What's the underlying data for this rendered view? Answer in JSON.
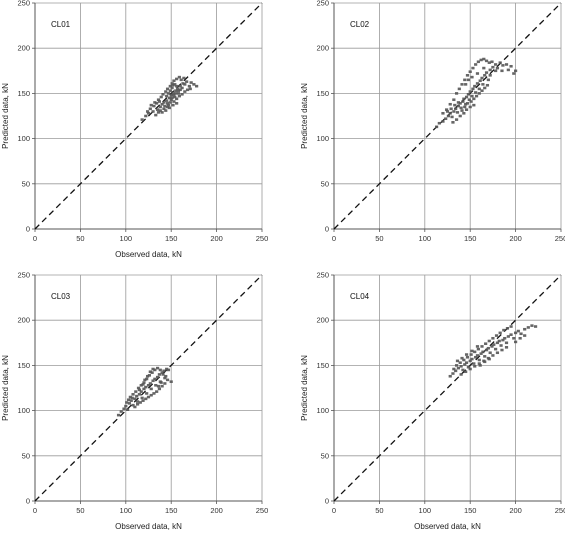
{
  "chart_data": [
    {
      "type": "scatter",
      "label": "CL01",
      "xlabel": "Observed data, kN",
      "ylabel": "Predicted data, kN",
      "xlim": [
        0,
        250
      ],
      "ylim": [
        0,
        250
      ],
      "xticks": [
        "0",
        "50",
        "100",
        "150",
        "200",
        "250"
      ],
      "yticks": [
        "0",
        "50",
        "100",
        "150",
        "200",
        "250"
      ],
      "grid": true,
      "reference_line": {
        "style": "dashed",
        "x": [
          0,
          250
        ],
        "y": [
          0,
          250
        ]
      },
      "points": [
        [
          118,
          121
        ],
        [
          122,
          125
        ],
        [
          125,
          128
        ],
        [
          130,
          130
        ],
        [
          133,
          126
        ],
        [
          135,
          132
        ],
        [
          138,
          135
        ],
        [
          140,
          138
        ],
        [
          142,
          140
        ],
        [
          145,
          142
        ],
        [
          147,
          137
        ],
        [
          148,
          145
        ],
        [
          150,
          148
        ],
        [
          152,
          150
        ],
        [
          154,
          146
        ],
        [
          155,
          153
        ],
        [
          157,
          155
        ],
        [
          158,
          150
        ],
        [
          160,
          158
        ],
        [
          162,
          156
        ],
        [
          163,
          161
        ],
        [
          165,
          160
        ],
        [
          167,
          163
        ],
        [
          170,
          158
        ],
        [
          172,
          162
        ],
        [
          175,
          160
        ],
        [
          178,
          158
        ],
        [
          128,
          137
        ],
        [
          132,
          140
        ],
        [
          136,
          143
        ],
        [
          139,
          146
        ],
        [
          141,
          149
        ],
        [
          144,
          152
        ],
        [
          146,
          155
        ],
        [
          149,
          158
        ],
        [
          151,
          161
        ],
        [
          153,
          164
        ],
        [
          156,
          166
        ],
        [
          159,
          168
        ],
        [
          161,
          165
        ],
        [
          164,
          167
        ],
        [
          124,
          130
        ],
        [
          127,
          133
        ],
        [
          131,
          136
        ],
        [
          134,
          139
        ],
        [
          137,
          141
        ],
        [
          143,
          136
        ],
        [
          146,
          139
        ],
        [
          150,
          143
        ],
        [
          153,
          141
        ],
        [
          156,
          144
        ],
        [
          159,
          147
        ],
        [
          162,
          149
        ],
        [
          165,
          152
        ],
        [
          168,
          154
        ],
        [
          171,
          155
        ],
        [
          140,
          129
        ],
        [
          144,
          131
        ],
        [
          148,
          134
        ],
        [
          152,
          137
        ],
        [
          156,
          139
        ],
        [
          136,
          129
        ],
        [
          138,
          131
        ],
        [
          142,
          133
        ],
        [
          146,
          135
        ],
        [
          149,
          140
        ],
        [
          151,
          145
        ],
        [
          153,
          148
        ],
        [
          155,
          150
        ],
        [
          158,
          153
        ],
        [
          160,
          154
        ],
        [
          145,
          147
        ],
        [
          147,
          150
        ],
        [
          149,
          153
        ],
        [
          151,
          156
        ],
        [
          152,
          159
        ],
        [
          154,
          160
        ],
        [
          156,
          158
        ]
      ]
    },
    {
      "type": "scatter",
      "label": "CL02",
      "xlabel": "Observed data, kN",
      "ylabel": "Predicted data, kN",
      "xlim": [
        0,
        250
      ],
      "ylim": [
        0,
        250
      ],
      "xticks": [
        "0",
        "50",
        "100",
        "150",
        "200",
        "250"
      ],
      "yticks": [
        "0",
        "50",
        "100",
        "150",
        "200",
        "250"
      ],
      "grid": true,
      "reference_line": {
        "style": "dashed",
        "x": [
          0,
          250
        ],
        "y": [
          0,
          250
        ]
      },
      "points": [
        [
          113,
          113
        ],
        [
          116,
          117
        ],
        [
          120,
          119
        ],
        [
          123,
          122
        ],
        [
          126,
          125
        ],
        [
          128,
          128
        ],
        [
          130,
          124
        ],
        [
          132,
          130
        ],
        [
          134,
          133
        ],
        [
          136,
          129
        ],
        [
          137,
          136
        ],
        [
          139,
          139
        ],
        [
          140,
          134
        ],
        [
          142,
          141
        ],
        [
          143,
          144
        ],
        [
          145,
          138
        ],
        [
          146,
          146
        ],
        [
          148,
          149
        ],
        [
          149,
          143
        ],
        [
          150,
          152
        ],
        [
          152,
          147
        ],
        [
          153,
          155
        ],
        [
          155,
          158
        ],
        [
          156,
          151
        ],
        [
          158,
          161
        ],
        [
          160,
          155
        ],
        [
          161,
          164
        ],
        [
          163,
          167
        ],
        [
          164,
          160
        ],
        [
          166,
          170
        ],
        [
          168,
          173
        ],
        [
          170,
          165
        ],
        [
          172,
          176
        ],
        [
          175,
          179
        ],
        [
          178,
          182
        ],
        [
          180,
          178
        ],
        [
          183,
          184
        ],
        [
          186,
          181
        ],
        [
          190,
          182
        ],
        [
          195,
          180
        ],
        [
          200,
          175
        ],
        [
          135,
          150
        ],
        [
          138,
          155
        ],
        [
          141,
          160
        ],
        [
          144,
          165
        ],
        [
          147,
          170
        ],
        [
          150,
          174
        ],
        [
          153,
          178
        ],
        [
          156,
          182
        ],
        [
          159,
          185
        ],
        [
          162,
          187
        ],
        [
          165,
          188
        ],
        [
          168,
          186
        ],
        [
          171,
          184
        ],
        [
          174,
          185
        ],
        [
          125,
          130
        ],
        [
          129,
          133
        ],
        [
          133,
          137
        ],
        [
          137,
          140
        ],
        [
          141,
          131
        ],
        [
          144,
          135
        ],
        [
          147,
          139
        ],
        [
          151,
          141
        ],
        [
          154,
          144
        ],
        [
          157,
          147
        ],
        [
          160,
          150
        ],
        [
          163,
          153
        ],
        [
          166,
          156
        ],
        [
          169,
          159
        ],
        [
          120,
          128
        ],
        [
          124,
          132
        ],
        [
          128,
          138
        ],
        [
          132,
          143
        ],
        [
          131,
          118
        ],
        [
          135,
          121
        ],
        [
          139,
          125
        ],
        [
          143,
          128
        ],
        [
          146,
          132
        ],
        [
          150,
          135
        ],
        [
          154,
          137
        ],
        [
          145,
          160
        ],
        [
          148,
          165
        ],
        [
          152,
          168
        ],
        [
          158,
          172
        ],
        [
          165,
          178
        ],
        [
          172,
          170
        ],
        [
          178,
          175
        ],
        [
          185,
          175
        ],
        [
          192,
          176
        ],
        [
          198,
          172
        ]
      ]
    },
    {
      "type": "scatter",
      "label": "CL03",
      "xlabel": "Observed data, kN",
      "ylabel": "Predicted data, kN",
      "xlim": [
        0,
        250
      ],
      "ylim": [
        0,
        250
      ],
      "xticks": [
        "0",
        "50",
        "100",
        "150",
        "200",
        "250"
      ],
      "yticks": [
        "0",
        "50",
        "100",
        "150",
        "200",
        "250"
      ],
      "grid": true,
      "reference_line": {
        "style": "dashed",
        "x": [
          0,
          250
        ],
        "y": [
          0,
          250
        ]
      },
      "points": [
        [
          92,
          95
        ],
        [
          95,
          99
        ],
        [
          98,
          102
        ],
        [
          100,
          105
        ],
        [
          102,
          101
        ],
        [
          104,
          108
        ],
        [
          106,
          111
        ],
        [
          108,
          106
        ],
        [
          110,
          113
        ],
        [
          112,
          116
        ],
        [
          113,
          110
        ],
        [
          115,
          118
        ],
        [
          117,
          121
        ],
        [
          118,
          114
        ],
        [
          120,
          124
        ],
        [
          122,
          126
        ],
        [
          123,
          119
        ],
        [
          125,
          128
        ],
        [
          127,
          130
        ],
        [
          128,
          124
        ],
        [
          130,
          133
        ],
        [
          132,
          135
        ],
        [
          133,
          128
        ],
        [
          135,
          137
        ],
        [
          137,
          140
        ],
        [
          138,
          132
        ],
        [
          140,
          142
        ],
        [
          142,
          144
        ],
        [
          143,
          136
        ],
        [
          145,
          146
        ],
        [
          147,
          145
        ],
        [
          105,
          115
        ],
        [
          108,
          118
        ],
        [
          111,
          121
        ],
        [
          114,
          125
        ],
        [
          117,
          128
        ],
        [
          120,
          131
        ],
        [
          123,
          135
        ],
        [
          126,
          139
        ],
        [
          129,
          142
        ],
        [
          132,
          145
        ],
        [
          135,
          147
        ],
        [
          110,
          104
        ],
        [
          113,
          107
        ],
        [
          116,
          109
        ],
        [
          119,
          111
        ],
        [
          122,
          113
        ],
        [
          125,
          115
        ],
        [
          128,
          117
        ],
        [
          131,
          119
        ],
        [
          134,
          121
        ],
        [
          137,
          124
        ],
        [
          140,
          127
        ],
        [
          143,
          130
        ],
        [
          146,
          134
        ],
        [
          101,
          109
        ],
        [
          103,
          112
        ],
        [
          107,
          114
        ],
        [
          121,
          134
        ],
        [
          124,
          138
        ],
        [
          127,
          143
        ],
        [
          130,
          146
        ],
        [
          138,
          145
        ],
        [
          141,
          140
        ],
        [
          144,
          138
        ],
        [
          150,
          132
        ],
        [
          136,
          127
        ],
        [
          139,
          131
        ],
        [
          119,
          129
        ],
        [
          115,
          123
        ]
      ]
    },
    {
      "type": "scatter",
      "label": "CL04",
      "xlabel": "Observed data, kN",
      "ylabel": "Predicted data, kN",
      "xlim": [
        0,
        250
      ],
      "ylim": [
        0,
        250
      ],
      "xticks": [
        "0",
        "50",
        "100",
        "150",
        "200",
        "250"
      ],
      "yticks": [
        "0",
        "50",
        "100",
        "150",
        "200",
        "250"
      ],
      "grid": true,
      "reference_line": {
        "style": "dashed",
        "x": [
          0,
          250
        ],
        "y": [
          0,
          250
        ]
      },
      "points": [
        [
          128,
          138
        ],
        [
          131,
          141
        ],
        [
          134,
          144
        ],
        [
          137,
          147
        ],
        [
          140,
          149
        ],
        [
          142,
          145
        ],
        [
          144,
          151
        ],
        [
          146,
          153
        ],
        [
          148,
          148
        ],
        [
          150,
          155
        ],
        [
          152,
          157
        ],
        [
          154,
          152
        ],
        [
          156,
          159
        ],
        [
          158,
          161
        ],
        [
          160,
          156
        ],
        [
          162,
          163
        ],
        [
          164,
          165
        ],
        [
          166,
          160
        ],
        [
          168,
          167
        ],
        [
          170,
          169
        ],
        [
          172,
          164
        ],
        [
          174,
          171
        ],
        [
          176,
          173
        ],
        [
          178,
          168
        ],
        [
          180,
          175
        ],
        [
          182,
          177
        ],
        [
          184,
          172
        ],
        [
          186,
          178
        ],
        [
          188,
          180
        ],
        [
          190,
          175
        ],
        [
          192,
          182
        ],
        [
          195,
          184
        ],
        [
          198,
          180
        ],
        [
          200,
          186
        ],
        [
          203,
          188
        ],
        [
          206,
          185
        ],
        [
          210,
          190
        ],
        [
          214,
          192
        ],
        [
          218,
          194
        ],
        [
          222,
          193
        ],
        [
          135,
          150
        ],
        [
          139,
          153
        ],
        [
          143,
          156
        ],
        [
          147,
          159
        ],
        [
          151,
          162
        ],
        [
          155,
          165
        ],
        [
          159,
          168
        ],
        [
          163,
          171
        ],
        [
          167,
          174
        ],
        [
          171,
          177
        ],
        [
          175,
          180
        ],
        [
          179,
          183
        ],
        [
          183,
          186
        ],
        [
          187,
          189
        ],
        [
          191,
          191
        ],
        [
          195,
          193
        ],
        [
          140,
          140
        ],
        [
          145,
          143
        ],
        [
          150,
          146
        ],
        [
          155,
          149
        ],
        [
          160,
          152
        ],
        [
          165,
          155
        ],
        [
          170,
          158
        ],
        [
          175,
          161
        ],
        [
          180,
          164
        ],
        [
          185,
          167
        ],
        [
          190,
          170
        ],
        [
          132,
          146
        ],
        [
          136,
          155
        ],
        [
          141,
          158
        ],
        [
          146,
          162
        ],
        [
          152,
          166
        ],
        [
          158,
          171
        ],
        [
          200,
          176
        ],
        [
          205,
          180
        ],
        [
          210,
          183
        ],
        [
          161,
          150
        ],
        [
          166,
          154
        ],
        [
          171,
          157
        ]
      ]
    }
  ]
}
